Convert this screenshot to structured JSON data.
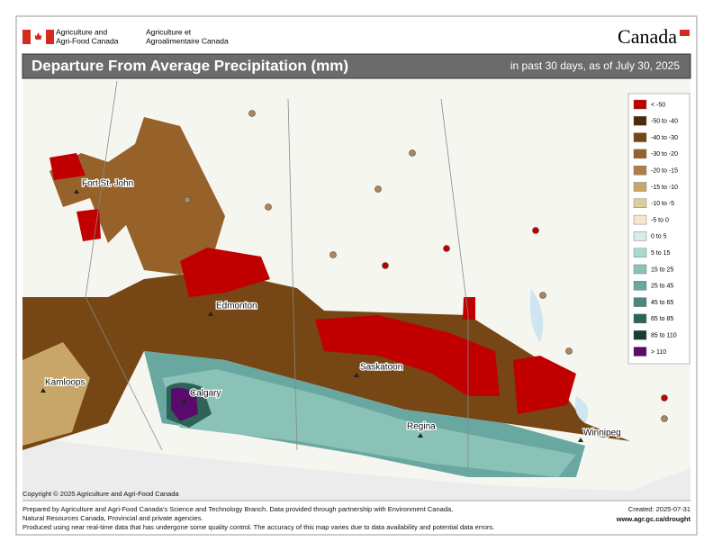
{
  "header": {
    "org_en_1": "Agriculture and",
    "org_en_2": "Agri-Food Canada",
    "org_fr_1": "Agriculture et",
    "org_fr_2": "Agroalimentaire Canada",
    "wordmark": "Canada"
  },
  "title": "Departure From Average Precipitation (mm)",
  "subtitle": "in past 30 days, as of July 30, 2025",
  "legend": {
    "items": [
      {
        "label": "< -50",
        "color": "#c00000"
      },
      {
        "label": "-50 to -40",
        "color": "#4a2c0a"
      },
      {
        "label": "-40 to -30",
        "color": "#764614"
      },
      {
        "label": "-30 to -20",
        "color": "#96622a"
      },
      {
        "label": "-20 to -15",
        "color": "#ae8046"
      },
      {
        "label": "-15 to -10",
        "color": "#c8a66a"
      },
      {
        "label": "-10 to -5",
        "color": "#e0cc98"
      },
      {
        "label": "-5 to 0",
        "color": "#f2e8cc"
      },
      {
        "label": "0 to 5",
        "color": "#d8ecea"
      },
      {
        "label": "5 to 15",
        "color": "#aadad0"
      },
      {
        "label": "15 to 25",
        "color": "#8ac2b8"
      },
      {
        "label": "25 to 45",
        "color": "#68a8a0"
      },
      {
        "label": "45 to 65",
        "color": "#4a8880"
      },
      {
        "label": "65 to 85",
        "color": "#2e6458"
      },
      {
        "label": "85 to 110",
        "color": "#1a3c30"
      },
      {
        "label": "> 110",
        "color": "#5a0a6a"
      }
    ]
  },
  "cities": [
    "Fort St. John",
    "Edmonton",
    "Kamloops",
    "Calgary",
    "Saskatoon",
    "Regina",
    "Winnipeg"
  ],
  "copyright": "Copyright © 2025 Agriculture and Agri-Food Canada",
  "footer": {
    "line1": "Prepared by Agriculture and Agri-Food Canada's Science and Technology Branch. Data provided through partnership with Environment Canada,",
    "line2": "Natural Resources Canada, Provincial and private agencies.",
    "line3": "Produced using near real-time data that has undergone some quality control. The accuracy of this map varies due to data availability and potential data errors.",
    "created": "Created: 2025-07-31",
    "url": "www.agr.gc.ca/drought"
  }
}
